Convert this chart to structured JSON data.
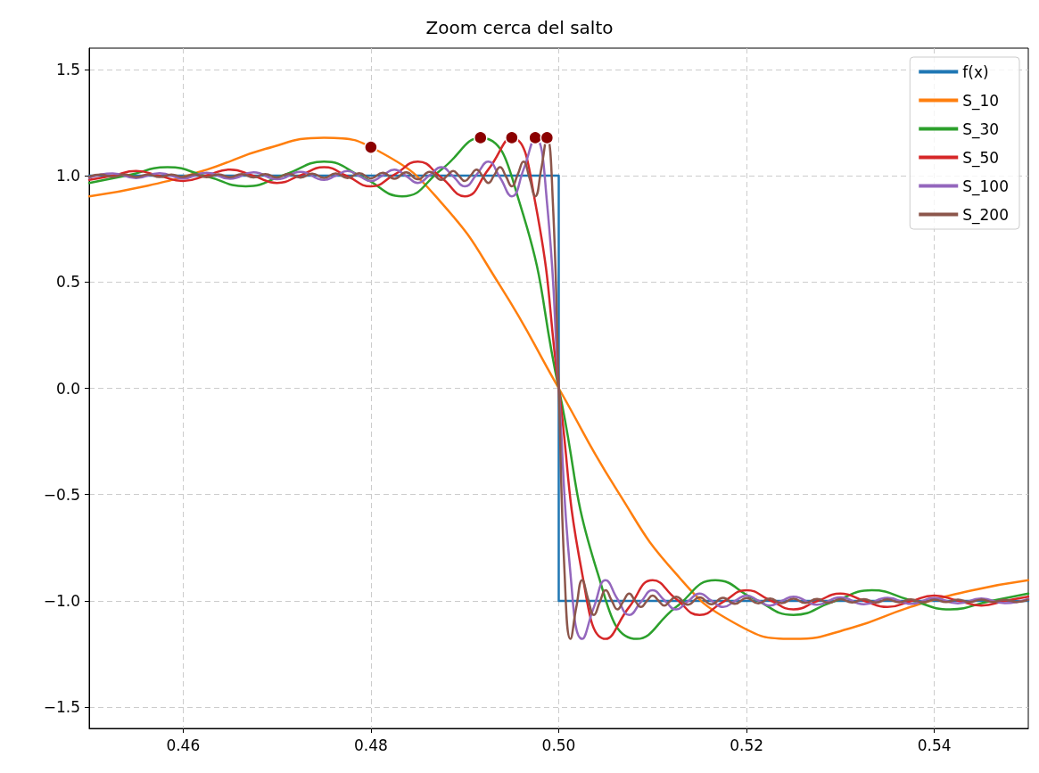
{
  "chart_data": {
    "type": "line",
    "title": "Zoom cerca del salto",
    "xlim": [
      0.45,
      0.55
    ],
    "xticks": [
      0.46,
      0.48,
      {
        "value": 0.5,
        "label": "0.50"
      },
      0.52,
      0.54
    ],
    "ylim": [
      -1.6,
      1.6
    ],
    "yticks": [
      {
        "value": -1.5,
        "label": "−1.5"
      },
      {
        "value": -1,
        "label": "−1.0"
      },
      {
        "value": -0.5,
        "label": "−0.5"
      },
      {
        "value": 0,
        "label": "0.0"
      },
      0.5,
      {
        "value": 1,
        "label": "1.0"
      },
      1.5
    ],
    "grid": true,
    "legend": "top right",
    "series": [
      {
        "name": "f(x)",
        "color": "#1f77b4",
        "x": [
          0.45,
          0.5,
          0.5,
          0.55
        ],
        "values": [
          1,
          1,
          -1,
          -1
        ]
      },
      {
        "name": "S_10",
        "color": "#ff7f0e",
        "x": [
          0.45,
          0.45625,
          0.4625,
          0.46875,
          0.475,
          0.48125,
          0.4875,
          0.49375,
          0.5,
          0.50625,
          0.5125,
          0.51875,
          0.525,
          0.53125,
          0.5375,
          0.54375,
          0.55
        ],
        "values": [
          0.903,
          0.953,
          1.028,
          1.126,
          1.179,
          1.105,
          0.873,
          0.483,
          0,
          -0.483,
          -0.873,
          -1.105,
          -1.179,
          -1.126,
          -1.028,
          -0.953,
          -0.903
        ]
      },
      {
        "name": "S_30",
        "color": "#2ca02c",
        "x": [
          0.45,
          0.45417,
          0.45833,
          0.4625,
          0.46667,
          0.47083,
          0.475,
          0.47917,
          0.48333,
          0.4875,
          0.49167,
          0.49583,
          0.5,
          0.50417,
          0.50833,
          0.5125,
          0.51667,
          0.52083,
          0.525,
          0.52917,
          0.53333,
          0.5375,
          0.54167,
          0.54583,
          0.55
        ],
        "values": [
          0.966,
          1.002,
          1.04,
          0.997,
          0.95,
          1.005,
          1.066,
          0.991,
          0.903,
          1.029,
          1.179,
          0.873,
          0,
          -0.873,
          -1.179,
          -1.029,
          -0.903,
          -0.991,
          -1.066,
          -1.005,
          -0.95,
          -0.997,
          -1.04,
          -1.002,
          -0.966
        ]
      },
      {
        "name": "S_50",
        "color": "#d62728",
        "x": [
          0.45,
          0.4525,
          0.455,
          0.4575,
          0.46,
          0.4625,
          0.465,
          0.4675,
          0.47,
          0.4725,
          0.475,
          0.4775,
          0.48,
          0.4825,
          0.485,
          0.4875,
          0.49,
          0.4925,
          0.495,
          0.4975,
          0.5,
          0.5025,
          0.505,
          0.5075,
          0.51,
          0.5125,
          0.515,
          0.5175,
          0.52,
          0.5225,
          0.525,
          0.5275,
          0.53,
          0.5325,
          0.535,
          0.5375,
          0.54,
          0.5425,
          0.545,
          0.5475,
          0.55
        ],
        "values": [
          0.98,
          1.0,
          1.022,
          0.999,
          0.975,
          1.001,
          1.029,
          0.999,
          0.966,
          1.002,
          1.04,
          0.997,
          0.95,
          1.005,
          1.066,
          0.991,
          0.903,
          1.029,
          1.179,
          0.873,
          0,
          -0.873,
          -1.179,
          -1.029,
          -0.903,
          -0.991,
          -1.066,
          -1.005,
          -0.95,
          -0.997,
          -1.04,
          -1.002,
          -0.966,
          -0.999,
          -1.029,
          -1.001,
          -0.975,
          -0.999,
          -1.022,
          -1.0,
          -0.98
        ]
      },
      {
        "name": "S_100",
        "color": "#9467bd",
        "x": [
          0.45,
          0.4525,
          0.455,
          0.4575,
          0.46,
          0.4625,
          0.465,
          0.4675,
          0.47,
          0.4725,
          0.475,
          0.47625,
          0.4775,
          0.47875,
          0.48,
          0.48125,
          0.4825,
          0.48375,
          0.485,
          0.48625,
          0.4875,
          0.48875,
          0.49,
          0.49125,
          0.4925,
          0.49375,
          0.495,
          0.49625,
          0.4975,
          0.49875,
          0.5,
          0.50125,
          0.5025,
          0.50375,
          0.505,
          0.50625,
          0.5075,
          0.50875,
          0.51,
          0.51125,
          0.5125,
          0.51375,
          0.515,
          0.51625,
          0.5175,
          0.51875,
          0.52,
          0.52125,
          0.5225,
          0.52375,
          0.525,
          0.5275,
          0.53,
          0.5325,
          0.535,
          0.5375,
          0.54,
          0.5425,
          0.545,
          0.5475,
          0.55
        ],
        "values": [
          0.99,
          1.011,
          0.989,
          1.012,
          0.987,
          1.014,
          0.986,
          1.016,
          0.983,
          1.018,
          0.98,
          1.0,
          1.022,
          0.999,
          0.975,
          1.001,
          1.029,
          0.999,
          0.966,
          1.002,
          1.04,
          0.997,
          0.95,
          1.005,
          1.066,
          0.991,
          0.903,
          1.029,
          1.179,
          0.873,
          0,
          -0.873,
          -1.179,
          -1.029,
          -0.903,
          -0.991,
          -1.066,
          -1.005,
          -0.95,
          -0.997,
          -1.04,
          -1.002,
          -0.966,
          -0.999,
          -1.029,
          -1.001,
          -0.975,
          -0.999,
          -1.022,
          -1.0,
          -0.98,
          -1.018,
          -0.983,
          -1.016,
          -0.986,
          -1.014,
          -0.987,
          -1.012,
          -0.989,
          -1.011,
          -0.99
        ]
      },
      {
        "name": "S_200",
        "color": "#8c564b",
        "x": [
          0.45,
          0.45125,
          0.4525,
          0.45375,
          0.455,
          0.45625,
          0.4575,
          0.45875,
          0.46,
          0.46125,
          0.4625,
          0.46375,
          0.465,
          0.46625,
          0.4675,
          0.46875,
          0.47,
          0.47125,
          0.4725,
          0.47375,
          0.475,
          0.47625,
          0.4775,
          0.47875,
          0.48,
          0.48125,
          0.4825,
          0.48375,
          0.485,
          0.48625,
          0.4875,
          0.488125,
          0.48875,
          0.489375,
          0.49,
          0.490625,
          0.49125,
          0.491875,
          0.4925,
          0.493125,
          0.49375,
          0.494375,
          0.495,
          0.495625,
          0.49625,
          0.496875,
          0.4975,
          0.498125,
          0.49875,
          0.499375,
          0.5,
          0.500625,
          0.50125,
          0.501875,
          0.5025,
          0.503125,
          0.50375,
          0.504375,
          0.505,
          0.505625,
          0.50625,
          0.506875,
          0.5075,
          0.508125,
          0.50875,
          0.509375,
          0.51,
          0.510625,
          0.51125,
          0.511875,
          0.5125,
          0.51375,
          0.515,
          0.51625,
          0.5175,
          0.51875,
          0.52,
          0.52125,
          0.5225,
          0.52375,
          0.525,
          0.52625,
          0.5275,
          0.52875,
          0.53,
          0.53125,
          0.5325,
          0.53375,
          0.535,
          0.53625,
          0.5375,
          0.53875,
          0.54,
          0.54125,
          0.5425,
          0.54375,
          0.545,
          0.54625,
          0.5475,
          0.54875,
          0.55
        ],
        "values": [
          0.995,
          1.005,
          0.995,
          1.005,
          0.994,
          1.006,
          0.994,
          1.006,
          0.994,
          1.007,
          0.993,
          1.007,
          0.993,
          1.008,
          0.992,
          1.008,
          0.992,
          1.009,
          0.991,
          1.01,
          0.99,
          1.011,
          0.989,
          1.012,
          0.987,
          1.014,
          0.986,
          1.016,
          0.983,
          1.018,
          0.98,
          1.0,
          1.022,
          0.999,
          0.975,
          1.001,
          1.029,
          0.999,
          0.966,
          1.002,
          1.04,
          0.997,
          0.95,
          1.005,
          1.066,
          0.991,
          0.903,
          1.029,
          1.179,
          0.873,
          0,
          -0.873,
          -1.179,
          -1.029,
          -0.903,
          -0.991,
          -1.066,
          -1.005,
          -0.95,
          -0.997,
          -1.04,
          -1.002,
          -0.966,
          -0.999,
          -1.029,
          -1.001,
          -0.975,
          -0.999,
          -1.022,
          -1.0,
          -0.98,
          -1.018,
          -0.983,
          -1.016,
          -0.986,
          -1.014,
          -0.987,
          -1.012,
          -0.989,
          -1.011,
          -0.99,
          -1.01,
          -0.991,
          -1.009,
          -0.992,
          -1.008,
          -0.992,
          -1.008,
          -0.993,
          -1.007,
          -0.993,
          -1.007,
          -0.994,
          -1.006,
          -0.994,
          -1.006,
          -0.994,
          -1.005,
          -0.995,
          -1.005,
          -0.995
        ]
      },
      {
        "type": "scatter",
        "marker": "circle",
        "color": "#8b0000",
        "x": [
          0.48,
          0.49167,
          0.495,
          0.4975,
          0.49875
        ],
        "values": [
          1.134,
          1.179,
          1.179,
          1.179,
          1.179
        ]
      }
    ]
  }
}
